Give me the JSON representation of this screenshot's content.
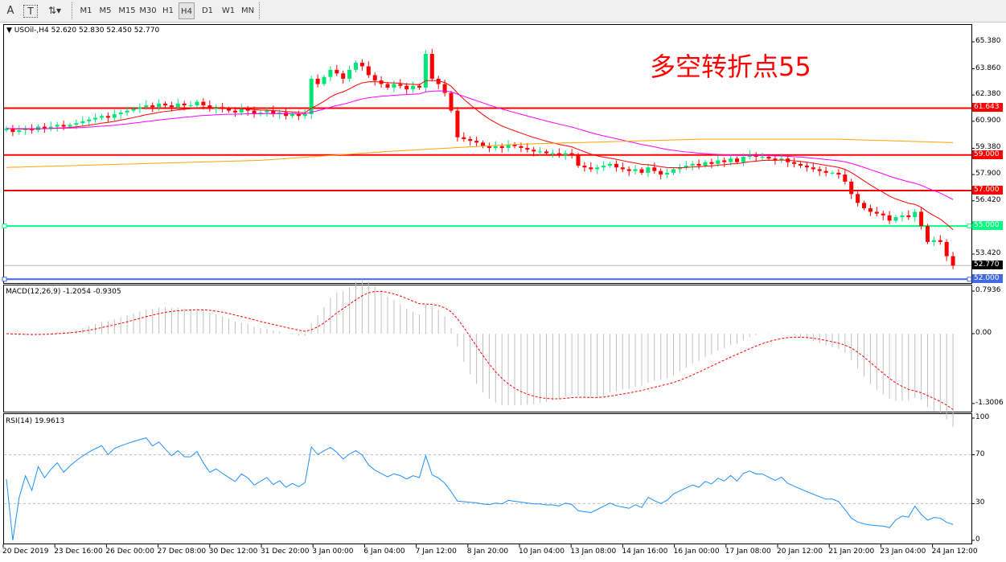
{
  "toolbar": {
    "text_tool": "A",
    "textlabel_tool": "T",
    "arrows_icon": "arrows-icon",
    "timeframes": [
      "M1",
      "M5",
      "M15",
      "M30",
      "H1",
      "H4",
      "D1",
      "W1",
      "MN"
    ],
    "active_timeframe": "H4"
  },
  "main": {
    "header": "USOil-,H4  52.620 52.830 52.450 52.770",
    "annotation": "多空转折点55",
    "price_axis": [
      "65.380",
      "63.860",
      "62.380",
      "60.900",
      "59.380",
      "57.900",
      "56.420",
      "53.420"
    ],
    "price_axis_values": [
      65.38,
      63.86,
      62.38,
      60.9,
      59.38,
      57.9,
      56.42,
      53.42
    ],
    "hlines": [
      {
        "value": 61.643,
        "label": "61.643",
        "color": "#ff0000"
      },
      {
        "value": 59.0,
        "label": "59.000",
        "color": "#ff0000"
      },
      {
        "value": 57.0,
        "label": "57.000",
        "color": "#ff0000"
      },
      {
        "value": 55.0,
        "label": "55.000",
        "color": "#00ff7f"
      },
      {
        "value": 52.0,
        "label": "52.000",
        "color": "#4169e1"
      }
    ],
    "current_price": {
      "value": 52.77,
      "label": "52.770"
    },
    "colors": {
      "up": "#00e676",
      "down": "#ff0000",
      "ma_fast": "#ff0000",
      "ma_mid": "#ff00ff",
      "ma_slow": "#ffa500"
    },
    "closes": [
      60.5,
      60.3,
      60.4,
      60.5,
      60.4,
      60.6,
      60.5,
      60.6,
      60.7,
      60.6,
      60.7,
      60.8,
      60.9,
      61.0,
      61.1,
      61.2,
      61.1,
      61.3,
      61.4,
      61.5,
      61.6,
      61.7,
      61.8,
      61.7,
      61.9,
      61.8,
      61.7,
      61.9,
      61.8,
      61.8,
      62.0,
      61.8,
      61.6,
      61.7,
      61.6,
      61.5,
      61.4,
      61.6,
      61.5,
      61.3,
      61.4,
      61.5,
      61.3,
      61.4,
      61.2,
      61.3,
      61.2,
      61.3,
      63.3,
      63.0,
      63.4,
      63.8,
      63.6,
      63.3,
      63.8,
      64.2,
      64.0,
      63.5,
      63.2,
      63.0,
      62.8,
      63.0,
      62.9,
      62.7,
      62.9,
      62.8,
      64.7,
      63.3,
      63.0,
      62.5,
      61.5,
      60.0,
      59.9,
      59.8,
      59.7,
      59.5,
      59.4,
      59.5,
      59.4,
      59.6,
      59.5,
      59.4,
      59.3,
      59.2,
      59.2,
      59.1,
      59.1,
      59.0,
      59.1,
      59.0,
      58.4,
      58.3,
      58.2,
      58.3,
      58.4,
      58.5,
      58.3,
      58.2,
      58.1,
      58.2,
      58.0,
      58.3,
      58.1,
      57.9,
      58.0,
      58.2,
      58.3,
      58.4,
      58.5,
      58.4,
      58.6,
      58.5,
      58.7,
      58.6,
      58.8,
      58.6,
      58.9,
      59.0,
      58.9,
      58.9,
      58.8,
      58.7,
      58.8,
      58.6,
      58.5,
      58.4,
      58.3,
      58.2,
      58.1,
      58.0,
      58.0,
      57.9,
      57.5,
      56.8,
      56.3,
      56.0,
      55.8,
      55.7,
      55.6,
      55.3,
      55.5,
      55.6,
      55.5,
      55.8,
      55.0,
      54.1,
      54.2,
      54.1,
      53.3,
      52.77
    ],
    "ma_slow": [
      [
        0,
        58.3
      ],
      [
        40,
        58.7
      ],
      [
        60,
        59.2
      ],
      [
        80,
        59.6
      ],
      [
        110,
        59.9
      ],
      [
        130,
        59.9
      ],
      [
        149,
        59.7
      ]
    ]
  },
  "macd": {
    "header": "MACD(12,26,9) -1.2054 -0.9305",
    "axis": [
      "0.7936",
      "0.00",
      "-1.3006"
    ],
    "axis_values": [
      0.7936,
      0,
      -1.3006
    ]
  },
  "rsi": {
    "header": "RSI(14) 19.9613",
    "axis": [
      "100",
      "70",
      "30",
      "0"
    ],
    "axis_values": [
      100,
      70,
      30,
      0
    ],
    "color": "#1e90ff"
  },
  "time_axis": [
    "20 Dec 2019",
    "23 Dec 16:00",
    "26 Dec 00:00",
    "27 Dec 08:00",
    "30 Dec 12:00",
    "31 Dec 20:00",
    "3 Jan 00:00",
    "6 Jan 04:00",
    "7 Jan 12:00",
    "8 Jan 20:00",
    "10 Jan 04:00",
    "13 Jan 08:00",
    "14 Jan 16:00",
    "16 Jan 00:00",
    "17 Jan 08:00",
    "20 Jan 12:00",
    "21 Jan 20:00",
    "23 Jan 04:00",
    "24 Jan 12:00"
  ]
}
